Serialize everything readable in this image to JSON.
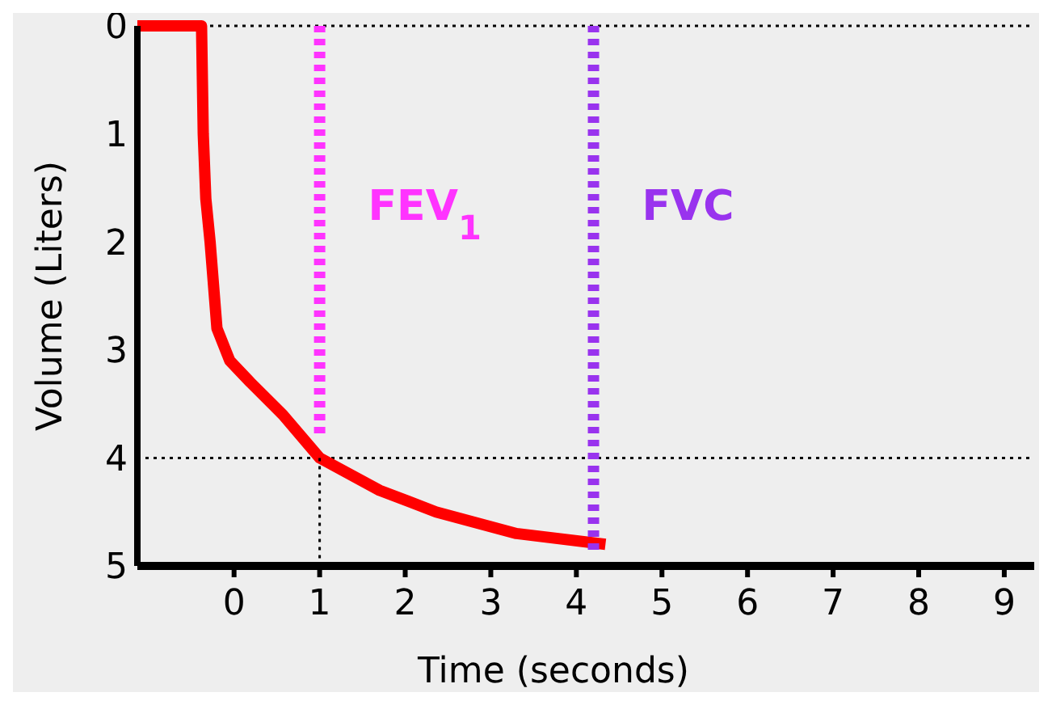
{
  "chart_data": {
    "type": "line",
    "xlabel": "Time (seconds)",
    "ylabel": "Volume (Liters)",
    "xlim": [
      -1.13,
      9.35
    ],
    "ylim": [
      5,
      0
    ],
    "xticks": [
      0,
      1,
      2,
      3,
      4,
      5,
      6,
      7,
      8,
      9
    ],
    "yticks": [
      0,
      1,
      2,
      3,
      4,
      5
    ],
    "grid": false,
    "series": [
      {
        "color": "#ff0000",
        "line_style": "solid",
        "x": [
          -1.13,
          -0.38,
          -0.36,
          -0.33,
          -0.28,
          -0.2,
          -0.05,
          0.19,
          0.57,
          1.0,
          1.7,
          2.36,
          3.3,
          4.34
        ],
        "values": [
          0,
          0,
          1,
          1.6,
          2.0,
          2.8,
          3.1,
          3.3,
          3.6,
          4.0,
          4.3,
          4.5,
          4.7,
          4.8
        ]
      },
      {
        "name": "FEV$_{1}$",
        "color": "#ff33ff",
        "line_style": "dashed",
        "x": [
          1,
          1
        ],
        "values": [
          0,
          3.8
        ]
      },
      {
        "name": "FVC",
        "color": "#9933ee",
        "line_style": "dashed",
        "x": [
          4.2,
          4.2
        ],
        "values": [
          0,
          4.85
        ]
      },
      {
        "color": "#000000",
        "line_style": "dotted",
        "x": [
          1,
          1
        ],
        "values": [
          4,
          5
        ]
      }
    ],
    "ref_lines": [
      {
        "axis": "y",
        "value": 0,
        "color": "#000000",
        "line_style": "dotted"
      },
      {
        "axis": "y",
        "value": 4,
        "color": "#000000",
        "line_style": "dotted"
      }
    ]
  }
}
